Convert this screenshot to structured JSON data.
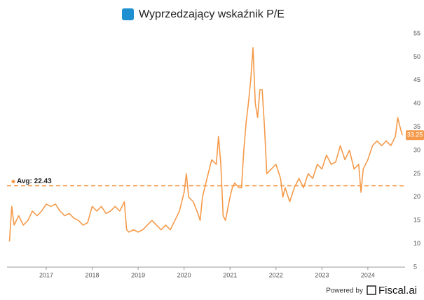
{
  "chart_data": {
    "type": "line",
    "title": "Wyprzedzający wskaźnik P/E",
    "series": [
      {
        "name": "P/E",
        "color": "#f59a4a",
        "x": [
          2016.2,
          2016.25,
          2016.3,
          2016.4,
          2016.5,
          2016.6,
          2016.7,
          2016.8,
          2016.9,
          2017.0,
          2017.1,
          2017.2,
          2017.3,
          2017.4,
          2017.5,
          2017.6,
          2017.7,
          2017.8,
          2017.9,
          2018.0,
          2018.1,
          2018.2,
          2018.3,
          2018.4,
          2018.5,
          2018.6,
          2018.7,
          2018.75,
          2018.8,
          2018.9,
          2019.0,
          2019.1,
          2019.2,
          2019.3,
          2019.4,
          2019.5,
          2019.6,
          2019.7,
          2019.8,
          2019.9,
          2020.0,
          2020.05,
          2020.1,
          2020.2,
          2020.3,
          2020.35,
          2020.4,
          2020.5,
          2020.6,
          2020.7,
          2020.75,
          2020.8,
          2020.85,
          2020.9,
          2021.0,
          2021.05,
          2021.1,
          2021.2,
          2021.25,
          2021.3,
          2021.35,
          2021.4,
          2021.45,
          2021.5,
          2021.55,
          2021.6,
          2021.65,
          2021.7,
          2021.75,
          2021.8,
          2021.9,
          2022.0,
          2022.1,
          2022.15,
          2022.2,
          2022.3,
          2022.4,
          2022.5,
          2022.6,
          2022.7,
          2022.8,
          2022.9,
          2023.0,
          2023.1,
          2023.2,
          2023.3,
          2023.4,
          2023.5,
          2023.6,
          2023.7,
          2023.8,
          2023.85,
          2023.9,
          2024.0,
          2024.1,
          2024.2,
          2024.3,
          2024.4,
          2024.5,
          2024.6,
          2024.65,
          2024.7,
          2024.75
        ],
        "values": [
          10.5,
          18,
          14,
          16,
          14,
          15,
          17,
          16,
          17,
          18.5,
          18,
          18.5,
          17,
          16,
          16.5,
          15.5,
          15,
          14,
          14.5,
          18,
          17,
          18,
          16.5,
          17,
          18,
          17,
          19,
          13,
          12.5,
          13,
          12.5,
          13,
          14,
          15,
          14,
          13,
          14,
          13,
          15,
          17,
          21,
          25,
          20,
          19,
          16.5,
          15,
          20,
          24,
          28,
          27,
          33,
          27,
          16,
          15,
          20,
          22,
          23,
          22,
          22,
          30,
          36,
          40,
          45,
          52,
          40,
          37,
          43,
          43,
          35,
          25,
          26,
          27,
          24,
          20,
          22,
          19,
          22,
          24,
          22,
          25,
          24,
          27,
          26,
          29,
          27,
          27.5,
          31,
          28,
          30,
          26,
          27,
          21,
          26,
          28,
          31,
          32,
          31,
          32,
          31,
          33,
          37,
          35,
          33.25
        ]
      }
    ],
    "average": 22.43,
    "average_label": "Avg: 22.43",
    "xlim": [
      2016.146,
      2024.81
    ],
    "xticks": [
      2017,
      2018,
      2019,
      2020,
      2021,
      2022,
      2023,
      2024
    ],
    "ylim": [
      5,
      55
    ],
    "yticks": [
      5,
      10,
      15,
      20,
      25,
      30,
      35,
      40,
      45,
      50,
      55
    ],
    "grid": false,
    "footer": {
      "powered_by": "Powered by",
      "brand": "Fiscal.ai"
    }
  }
}
